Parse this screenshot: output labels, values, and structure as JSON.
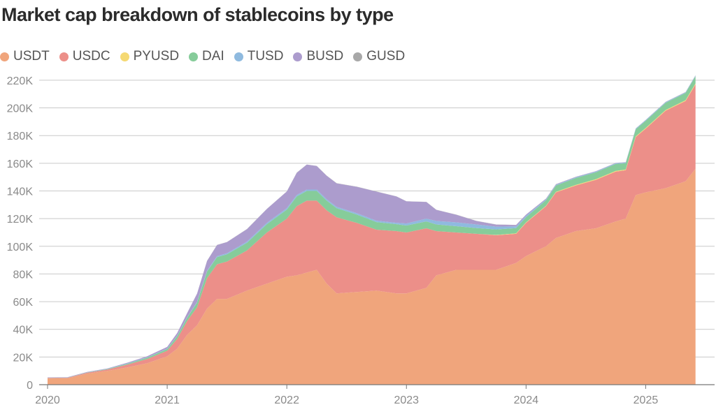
{
  "chart_data": {
    "type": "area",
    "stacked": true,
    "title": "Market cap breakdown of stablecoins by type",
    "xlabel": "",
    "ylabel": "",
    "x_domain": [
      2020.0,
      2025.5
    ],
    "ylim": [
      0,
      225000
    ],
    "x_ticks": [
      {
        "value": 2020,
        "label": "2020"
      },
      {
        "value": 2021,
        "label": "2021"
      },
      {
        "value": 2022,
        "label": "2022"
      },
      {
        "value": 2023,
        "label": "2023"
      },
      {
        "value": 2024,
        "label": "2024"
      },
      {
        "value": 2025,
        "label": "2025"
      }
    ],
    "y_ticks": [
      {
        "value": 0,
        "label": "0"
      },
      {
        "value": 20000,
        "label": "20K"
      },
      {
        "value": 40000,
        "label": "40K"
      },
      {
        "value": 60000,
        "label": "60K"
      },
      {
        "value": 80000,
        "label": "80K"
      },
      {
        "value": 100000,
        "label": "100K"
      },
      {
        "value": 120000,
        "label": "120K"
      },
      {
        "value": 140000,
        "label": "140K"
      },
      {
        "value": 160000,
        "label": "160K"
      },
      {
        "value": 180000,
        "label": "180K"
      },
      {
        "value": 200000,
        "label": "200K"
      },
      {
        "value": 220000,
        "label": "220K"
      }
    ],
    "grid": true,
    "legend_position": "top-left",
    "x": [
      "2020-01",
      "2020-03",
      "2020-05",
      "2020-07",
      "2020-09",
      "2020-11",
      "2021-01",
      "2021-02",
      "2021-03",
      "2021-04",
      "2021-05",
      "2021-06",
      "2021-07",
      "2021-09",
      "2021-11",
      "2022-01",
      "2022-02",
      "2022-03",
      "2022-04",
      "2022-05",
      "2022-06",
      "2022-08",
      "2022-10",
      "2022-12",
      "2023-01",
      "2023-03",
      "2023-04",
      "2023-06",
      "2023-08",
      "2023-10",
      "2023-12",
      "2024-01",
      "2024-03",
      "2024-04",
      "2024-06",
      "2024-08",
      "2024-10",
      "2024-11",
      "2024-12",
      "2025-01",
      "2025-03",
      "2025-05",
      "2025-06"
    ],
    "series": [
      {
        "name": "USDT",
        "color": "#f0a57c",
        "values": [
          4500,
          4600,
          8000,
          10000,
          12500,
          15500,
          20500,
          26000,
          36000,
          43000,
          55000,
          62000,
          62000,
          68000,
          73000,
          78000,
          79000,
          81000,
          83000,
          73000,
          66000,
          67000,
          68000,
          66000,
          66000,
          70000,
          79000,
          83000,
          83000,
          83000,
          88000,
          93000,
          100000,
          106000,
          111000,
          113000,
          118000,
          120000,
          137000,
          139000,
          142000,
          147000,
          156000
        ]
      },
      {
        "name": "USDC",
        "color": "#ec8f89",
        "values": [
          400,
          400,
          700,
          1000,
          2000,
          3000,
          4000,
          7000,
          10000,
          13000,
          22000,
          25000,
          27000,
          29000,
          37000,
          42000,
          50000,
          52000,
          50000,
          53000,
          55000,
          50000,
          44000,
          45000,
          44000,
          43000,
          32000,
          27000,
          26000,
          25000,
          21000,
          24000,
          29000,
          33000,
          33000,
          35000,
          36000,
          35000,
          42000,
          46000,
          56000,
          58000,
          61000
        ]
      },
      {
        "name": "PYUSD",
        "color": "#f5d973",
        "values": [
          0,
          0,
          0,
          0,
          0,
          0,
          0,
          0,
          0,
          0,
          0,
          0,
          0,
          0,
          0,
          0,
          0,
          0,
          0,
          0,
          0,
          0,
          0,
          0,
          0,
          0,
          0,
          0,
          0,
          200,
          300,
          300,
          300,
          400,
          400,
          500,
          500,
          500,
          500,
          500,
          500,
          600,
          700
        ]
      },
      {
        "name": "DAI",
        "color": "#86cc9a",
        "values": [
          100,
          100,
          200,
          300,
          600,
          1000,
          1300,
          1900,
          2300,
          3400,
          4800,
          5200,
          5200,
          5500,
          6000,
          6500,
          7000,
          7000,
          7000,
          7000,
          6500,
          6000,
          5500,
          5000,
          5000,
          5000,
          4800,
          4500,
          4200,
          4000,
          3800,
          3800,
          4000,
          4500,
          5000,
          5000,
          5000,
          4500,
          5000,
          5200,
          5200,
          5200,
          5200
        ]
      },
      {
        "name": "TUSD",
        "color": "#8fbadf",
        "values": [
          100,
          100,
          100,
          200,
          300,
          300,
          300,
          400,
          400,
          500,
          600,
          700,
          800,
          900,
          1000,
          1100,
          1100,
          1000,
          1000,
          1000,
          1000,
          1000,
          1000,
          1000,
          1500,
          2000,
          2500,
          2800,
          2600,
          2000,
          1300,
          1000,
          600,
          500,
          500,
          500,
          500,
          500,
          500,
          500,
          500,
          500,
          500
        ]
      },
      {
        "name": "BUSD",
        "color": "#ac9ccd",
        "values": [
          200,
          200,
          300,
          200,
          500,
          800,
          1200,
          2000,
          3000,
          6000,
          7000,
          8000,
          8000,
          9000,
          10000,
          12000,
          16000,
          18000,
          17000,
          17000,
          17000,
          19000,
          21000,
          19000,
          16000,
          12000,
          8000,
          5500,
          2500,
          1500,
          1000,
          800,
          500,
          400,
          300,
          200,
          200,
          200,
          100,
          100,
          100,
          100,
          100
        ]
      },
      {
        "name": "GUSD",
        "color": "#a8a8a8",
        "values": [
          0,
          0,
          0,
          0,
          0,
          0,
          0,
          0,
          0,
          0,
          100,
          100,
          100,
          100,
          100,
          100,
          100,
          100,
          100,
          100,
          100,
          100,
          100,
          100,
          100,
          100,
          100,
          100,
          100,
          100,
          100,
          100,
          100,
          100,
          100,
          100,
          100,
          100,
          100,
          100,
          100,
          100,
          100
        ]
      }
    ]
  }
}
